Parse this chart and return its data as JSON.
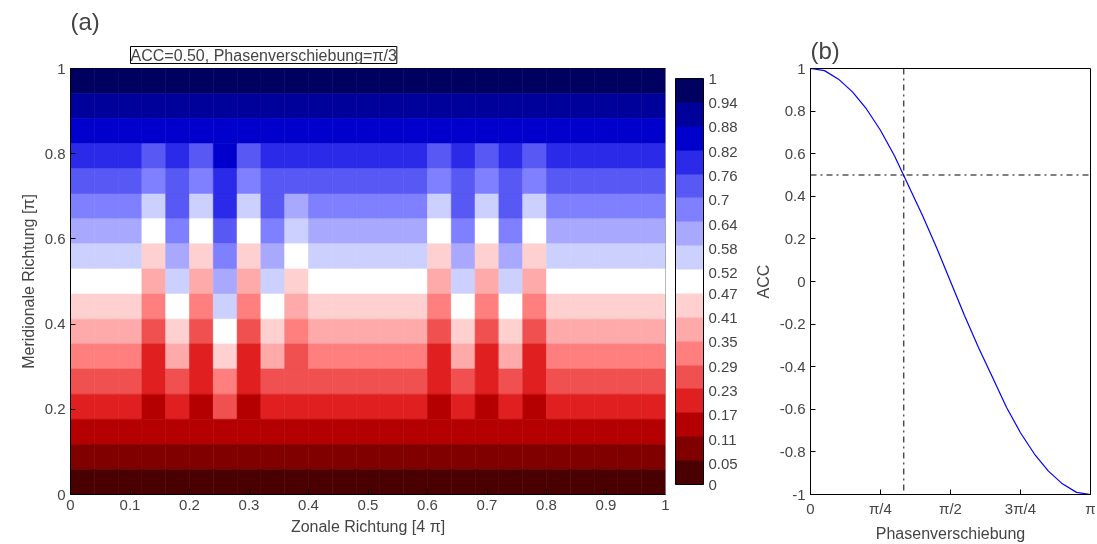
{
  "chart_data": [
    {
      "type": "heatmap",
      "title": "(a)",
      "xlabel": "Zonale Richtung [4 π]",
      "ylabel": "Meridionale Richtung [π]",
      "annotations": [
        "ACC=0.50, Phasenverschiebung=π/3"
      ],
      "x": [
        0.02,
        0.06,
        0.1,
        0.14,
        0.18,
        0.22,
        0.26,
        0.3,
        0.34,
        0.38,
        0.42,
        0.46,
        0.5,
        0.54,
        0.58,
        0.62,
        0.66,
        0.7,
        0.74,
        0.78,
        0.82,
        0.86,
        0.9,
        0.94,
        0.98
      ],
      "y": [
        0.971,
        0.912,
        0.853,
        0.794,
        0.735,
        0.676,
        0.618,
        0.559,
        0.5,
        0.441,
        0.382,
        0.324,
        0.265,
        0.206,
        0.147,
        0.088,
        0.029
      ],
      "cells": [
        [
          0.97,
          0.97,
          0.97,
          0.97,
          0.97,
          0.97,
          0.97,
          0.97,
          0.97,
          0.97,
          0.97,
          0.97,
          0.97,
          0.97,
          0.97,
          0.97,
          0.97,
          0.97,
          0.97,
          0.97,
          0.97,
          0.97,
          0.97,
          0.97,
          0.97
        ],
        [
          0.91,
          0.91,
          0.91,
          0.91,
          0.91,
          0.91,
          0.91,
          0.91,
          0.91,
          0.91,
          0.91,
          0.91,
          0.91,
          0.91,
          0.91,
          0.91,
          0.91,
          0.91,
          0.91,
          0.91,
          0.91,
          0.91,
          0.91,
          0.91,
          0.91
        ],
        [
          0.85,
          0.85,
          0.85,
          0.85,
          0.85,
          0.85,
          0.85,
          0.85,
          0.85,
          0.85,
          0.85,
          0.85,
          0.85,
          0.85,
          0.85,
          0.85,
          0.85,
          0.85,
          0.85,
          0.85,
          0.85,
          0.85,
          0.85,
          0.85,
          0.85
        ],
        [
          0.79,
          0.79,
          0.79,
          0.74,
          0.79,
          0.74,
          0.85,
          0.74,
          0.79,
          0.79,
          0.79,
          0.79,
          0.79,
          0.79,
          0.79,
          0.74,
          0.79,
          0.74,
          0.79,
          0.74,
          0.79,
          0.79,
          0.79,
          0.79,
          0.79
        ],
        [
          0.74,
          0.74,
          0.74,
          0.68,
          0.74,
          0.68,
          0.79,
          0.68,
          0.74,
          0.74,
          0.74,
          0.74,
          0.74,
          0.74,
          0.74,
          0.68,
          0.74,
          0.68,
          0.74,
          0.68,
          0.74,
          0.74,
          0.74,
          0.74,
          0.74
        ],
        [
          0.68,
          0.68,
          0.68,
          0.56,
          0.74,
          0.56,
          0.79,
          0.56,
          0.74,
          0.62,
          0.68,
          0.68,
          0.68,
          0.68,
          0.68,
          0.56,
          0.74,
          0.56,
          0.74,
          0.56,
          0.68,
          0.68,
          0.68,
          0.68,
          0.68
        ],
        [
          0.62,
          0.62,
          0.62,
          0.5,
          0.68,
          0.5,
          0.74,
          0.5,
          0.68,
          0.56,
          0.62,
          0.62,
          0.62,
          0.62,
          0.62,
          0.5,
          0.68,
          0.5,
          0.68,
          0.5,
          0.62,
          0.62,
          0.62,
          0.62,
          0.62
        ],
        [
          0.56,
          0.56,
          0.56,
          0.44,
          0.62,
          0.44,
          0.68,
          0.44,
          0.62,
          0.5,
          0.56,
          0.56,
          0.56,
          0.56,
          0.56,
          0.44,
          0.62,
          0.44,
          0.62,
          0.44,
          0.56,
          0.56,
          0.56,
          0.56,
          0.56
        ],
        [
          0.5,
          0.5,
          0.5,
          0.38,
          0.56,
          0.38,
          0.62,
          0.38,
          0.56,
          0.44,
          0.5,
          0.5,
          0.5,
          0.5,
          0.5,
          0.38,
          0.56,
          0.38,
          0.56,
          0.38,
          0.5,
          0.5,
          0.5,
          0.5,
          0.5
        ],
        [
          0.44,
          0.44,
          0.44,
          0.32,
          0.5,
          0.32,
          0.56,
          0.32,
          0.5,
          0.38,
          0.44,
          0.44,
          0.44,
          0.44,
          0.44,
          0.32,
          0.5,
          0.32,
          0.5,
          0.32,
          0.44,
          0.44,
          0.44,
          0.44,
          0.44
        ],
        [
          0.38,
          0.38,
          0.38,
          0.26,
          0.44,
          0.26,
          0.5,
          0.26,
          0.44,
          0.32,
          0.38,
          0.38,
          0.38,
          0.38,
          0.38,
          0.26,
          0.44,
          0.26,
          0.44,
          0.26,
          0.38,
          0.38,
          0.38,
          0.38,
          0.38
        ],
        [
          0.32,
          0.32,
          0.32,
          0.21,
          0.38,
          0.21,
          0.44,
          0.21,
          0.38,
          0.26,
          0.32,
          0.32,
          0.32,
          0.32,
          0.32,
          0.21,
          0.38,
          0.21,
          0.38,
          0.21,
          0.32,
          0.32,
          0.32,
          0.32,
          0.32
        ],
        [
          0.26,
          0.26,
          0.26,
          0.21,
          0.26,
          0.21,
          0.32,
          0.21,
          0.26,
          0.26,
          0.26,
          0.26,
          0.26,
          0.26,
          0.26,
          0.21,
          0.26,
          0.21,
          0.26,
          0.21,
          0.26,
          0.26,
          0.26,
          0.26,
          0.26
        ],
        [
          0.21,
          0.21,
          0.21,
          0.15,
          0.21,
          0.15,
          0.26,
          0.15,
          0.21,
          0.21,
          0.21,
          0.21,
          0.21,
          0.21,
          0.21,
          0.15,
          0.21,
          0.15,
          0.21,
          0.15,
          0.21,
          0.21,
          0.21,
          0.21,
          0.21
        ],
        [
          0.15,
          0.15,
          0.15,
          0.15,
          0.15,
          0.15,
          0.15,
          0.15,
          0.15,
          0.15,
          0.15,
          0.15,
          0.15,
          0.15,
          0.15,
          0.15,
          0.15,
          0.15,
          0.15,
          0.15,
          0.15,
          0.15,
          0.15,
          0.15,
          0.15
        ],
        [
          0.09,
          0.09,
          0.09,
          0.09,
          0.09,
          0.09,
          0.09,
          0.09,
          0.09,
          0.09,
          0.09,
          0.09,
          0.09,
          0.09,
          0.09,
          0.09,
          0.09,
          0.09,
          0.09,
          0.09,
          0.09,
          0.09,
          0.09,
          0.09,
          0.09
        ],
        [
          0.03,
          0.03,
          0.03,
          0.03,
          0.03,
          0.03,
          0.03,
          0.03,
          0.03,
          0.03,
          0.03,
          0.03,
          0.03,
          0.03,
          0.03,
          0.03,
          0.03,
          0.03,
          0.03,
          0.03,
          0.03,
          0.03,
          0.03,
          0.03,
          0.03
        ]
      ],
      "colors": [
        "#4a0000",
        "#800000",
        "#b40000",
        "#e02020",
        "#f05050",
        "#ff7f7f",
        "#ffaaaa",
        "#ffd0d0",
        "#ffffff",
        "#ccd0ff",
        "#a8a8ff",
        "#7f80ff",
        "#5858f5",
        "#2a2ae8",
        "#0000cc",
        "#00009a",
        "#000060"
      ],
      "clim": [
        0,
        1
      ],
      "cticks": [
        0,
        0.05,
        0.11,
        0.17,
        0.23,
        0.29,
        0.35,
        0.41,
        0.47,
        0.52,
        0.58,
        0.64,
        0.7,
        0.76,
        0.82,
        0.88,
        0.94,
        1
      ],
      "xlim": [
        0,
        1
      ],
      "xticks": [
        0,
        0.1,
        0.2,
        0.3,
        0.4,
        0.5,
        0.6,
        0.7,
        0.8,
        0.9,
        1
      ],
      "ylim": [
        0,
        1
      ],
      "yticks": [
        0,
        0.2,
        0.4,
        0.6,
        0.8,
        1
      ]
    },
    {
      "type": "line",
      "title": "(b)",
      "xlabel": "Phasenverschiebung",
      "ylabel": "ACC",
      "x": [
        0,
        0.157,
        0.314,
        0.471,
        0.628,
        0.785,
        0.942,
        1.1,
        1.257,
        1.414,
        1.571,
        1.728,
        1.885,
        2.042,
        2.199,
        2.356,
        2.513,
        2.67,
        2.827,
        2.985,
        3.142
      ],
      "series": [
        {
          "color": "#0000ff",
          "values": [
            1,
            0.99,
            0.95,
            0.89,
            0.81,
            0.71,
            0.59,
            0.45,
            0.31,
            0.16,
            0,
            -0.16,
            -0.31,
            -0.45,
            -0.59,
            -0.71,
            -0.81,
            -0.89,
            -0.95,
            -0.99,
            -1
          ]
        }
      ],
      "ref_lines": [
        {
          "axis": "x",
          "value": 1.047,
          "color": "#000000",
          "line_style": "dashdot"
        },
        {
          "axis": "y",
          "value": 0.5,
          "color": "#000000",
          "line_style": "dashdot"
        }
      ],
      "xlim": [
        0,
        3.142
      ],
      "xticks": [
        0,
        {
          "value": 0.785,
          "label": "π/4"
        },
        {
          "value": 1.571,
          "label": "π/2"
        },
        {
          "value": 2.356,
          "label": "3π/4"
        },
        {
          "value": 3.142,
          "label": "π"
        }
      ],
      "ylim": [
        -1,
        1
      ],
      "yticks": [
        -1,
        -0.8,
        -0.6,
        -0.4,
        -0.2,
        0,
        0.2,
        0.4,
        0.6,
        0.8,
        1
      ]
    }
  ]
}
